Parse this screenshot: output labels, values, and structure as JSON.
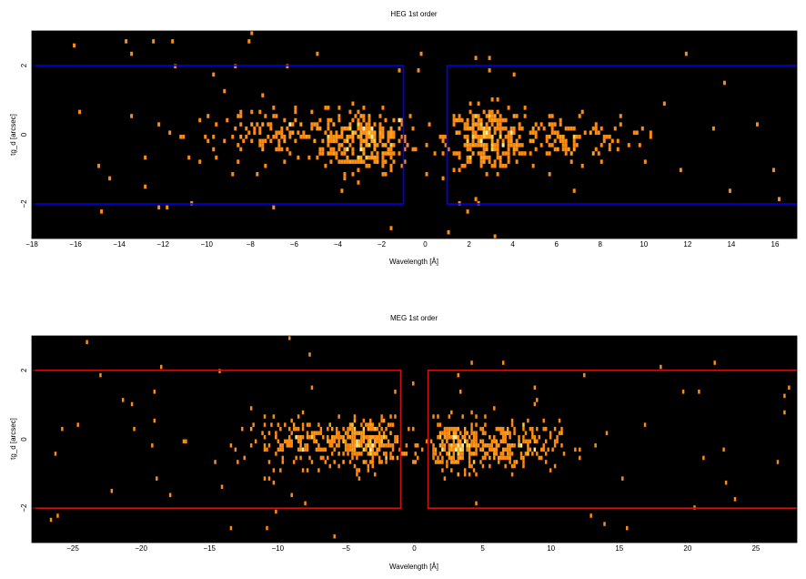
{
  "chart_data": [
    {
      "type": "heatmap",
      "title": "HEG 1st order",
      "xlabel": "Wavelength [Å]",
      "ylabel": "tg_d [arcsec]",
      "xlim": [
        -18,
        17
      ],
      "ylim": [
        -3,
        3
      ],
      "xticks": [
        -18,
        -16,
        -14,
        -12,
        -10,
        -8,
        -6,
        -4,
        -2,
        0,
        2,
        4,
        6,
        8,
        10,
        12,
        14,
        16
      ],
      "yticks": [
        -2,
        0,
        2
      ],
      "background_color": "#000000",
      "region_color": "#0000ff",
      "extraction_regions": [
        {
          "x0": -18,
          "x1": -1,
          "y0": -2,
          "y1": 2
        },
        {
          "x0": 1,
          "x1": 17,
          "y0": -2,
          "y1": 2
        }
      ],
      "source_clusters": [
        {
          "center_x": -2.7,
          "center_y": -0.2,
          "spread_x": 1.0,
          "spread_y": 0.45,
          "counts": 260
        },
        {
          "center_x": -6.5,
          "center_y": 0.0,
          "spread_x": 2.2,
          "spread_y": 0.35,
          "counts": 140
        },
        {
          "center_x": 2.8,
          "center_y": -0.1,
          "spread_x": 0.9,
          "spread_y": 0.45,
          "counts": 240
        },
        {
          "center_x": 6.0,
          "center_y": -0.1,
          "spread_x": 1.8,
          "spread_y": 0.35,
          "counts": 130
        }
      ],
      "background_counts": 60
    },
    {
      "type": "heatmap",
      "title": "MEG 1st order",
      "xlabel": "Wavelength [Å]",
      "ylabel": "tg_d [arcsec]",
      "xlim": [
        -28,
        28
      ],
      "ylim": [
        -3,
        3
      ],
      "xticks": [
        -25,
        -20,
        -15,
        -10,
        -5,
        0,
        5,
        10,
        15,
        20,
        25
      ],
      "yticks": [
        -2,
        0,
        2
      ],
      "background_color": "#000000",
      "region_color": "#cc1111",
      "extraction_regions": [
        {
          "x0": -28,
          "x1": -1,
          "y0": -2,
          "y1": 2
        },
        {
          "x0": 1,
          "x1": 28,
          "y0": -2,
          "y1": 2
        }
      ],
      "source_clusters": [
        {
          "center_x": -3.5,
          "center_y": -0.1,
          "spread_x": 1.3,
          "spread_y": 0.35,
          "counts": 230
        },
        {
          "center_x": -7.5,
          "center_y": -0.1,
          "spread_x": 2.5,
          "spread_y": 0.35,
          "counts": 170
        },
        {
          "center_x": 3.2,
          "center_y": -0.2,
          "spread_x": 1.2,
          "spread_y": 0.35,
          "counts": 220
        },
        {
          "center_x": 7.0,
          "center_y": -0.2,
          "spread_x": 1.8,
          "spread_y": 0.35,
          "counts": 180
        }
      ],
      "background_counts": 70
    }
  ]
}
